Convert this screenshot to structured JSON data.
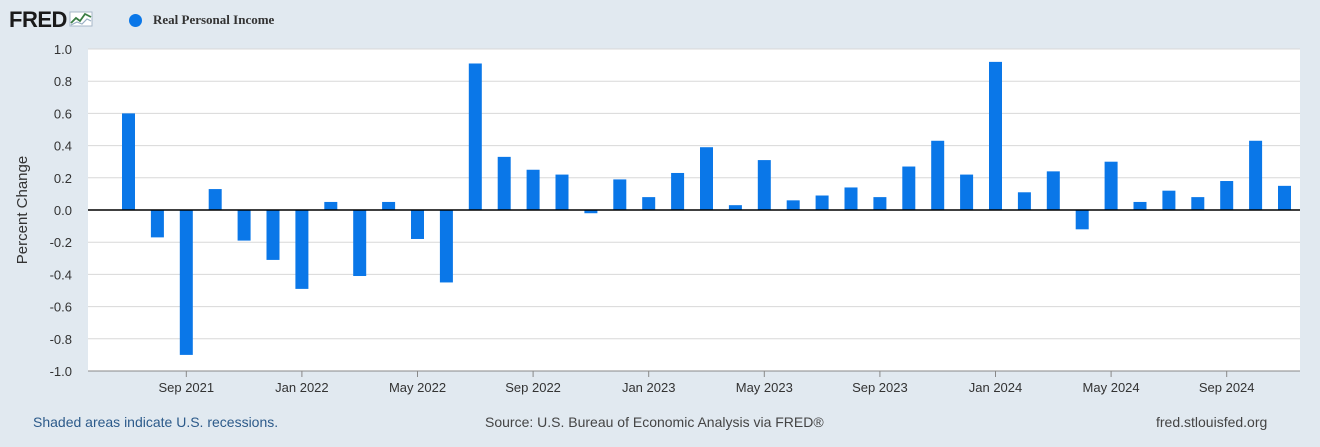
{
  "header": {
    "logo_text": "FRED",
    "logo_icon": "line-chart-icon",
    "legend_label": "Real Personal Income",
    "series_color": "#0a77e8"
  },
  "footer": {
    "recession_note": "Shaded areas indicate U.S. recessions.",
    "source": "Source: U.S. Bureau of Economic Analysis via FRED®",
    "site": "fred.stlouisfed.org"
  },
  "chart_data": {
    "type": "bar",
    "title": "",
    "ylabel": "Percent Change",
    "xlabel": "",
    "ylim": [
      -1.0,
      1.0
    ],
    "yticks": [
      1.0,
      0.8,
      0.6,
      0.4,
      0.2,
      0.0,
      -0.2,
      -0.4,
      -0.6,
      -0.8,
      -1.0
    ],
    "ytick_labels": [
      "1.0",
      "0.8",
      "0.6",
      "0.4",
      "0.2",
      "0.0",
      "-0.2",
      "-0.4",
      "-0.6",
      "-0.8",
      "-1.0"
    ],
    "x_tick_labels": [
      {
        "label": "Sep 2021",
        "date": "2021-09"
      },
      {
        "label": "Jan 2022",
        "date": "2022-01"
      },
      {
        "label": "May 2022",
        "date": "2022-05"
      },
      {
        "label": "Sep 2022",
        "date": "2022-09"
      },
      {
        "label": "Jan 2023",
        "date": "2023-01"
      },
      {
        "label": "May 2023",
        "date": "2023-05"
      },
      {
        "label": "Sep 2023",
        "date": "2023-09"
      },
      {
        "label": "Jan 2024",
        "date": "2024-01"
      },
      {
        "label": "May 2024",
        "date": "2024-05"
      },
      {
        "label": "Sep 2024",
        "date": "2024-09"
      }
    ],
    "grid": true,
    "legend_position": "top-left",
    "series": [
      {
        "name": "Real Personal Income",
        "color": "#0a77e8",
        "dates": [
          "2021-07",
          "2021-08",
          "2021-09",
          "2021-10",
          "2021-11",
          "2021-12",
          "2022-01",
          "2022-02",
          "2022-03",
          "2022-04",
          "2022-05",
          "2022-06",
          "2022-07",
          "2022-08",
          "2022-09",
          "2022-10",
          "2022-11",
          "2022-12",
          "2023-01",
          "2023-02",
          "2023-03",
          "2023-04",
          "2023-05",
          "2023-06",
          "2023-07",
          "2023-08",
          "2023-09",
          "2023-10",
          "2023-11",
          "2023-12",
          "2024-01",
          "2024-02",
          "2024-03",
          "2024-04",
          "2024-05",
          "2024-06",
          "2024-07",
          "2024-08",
          "2024-09",
          "2024-10",
          "2024-11"
        ],
        "values": [
          0.6,
          -0.17,
          -0.9,
          0.13,
          -0.19,
          -0.31,
          -0.49,
          0.05,
          -0.41,
          0.05,
          -0.18,
          -0.45,
          0.91,
          0.33,
          0.25,
          0.22,
          -0.02,
          0.19,
          0.08,
          0.23,
          0.39,
          0.03,
          0.31,
          0.06,
          0.09,
          0.14,
          0.08,
          0.27,
          0.43,
          0.22,
          0.92,
          0.11,
          0.24,
          -0.12,
          0.3,
          0.05,
          0.12,
          0.08,
          0.18,
          0.43,
          0.15
        ]
      }
    ]
  }
}
